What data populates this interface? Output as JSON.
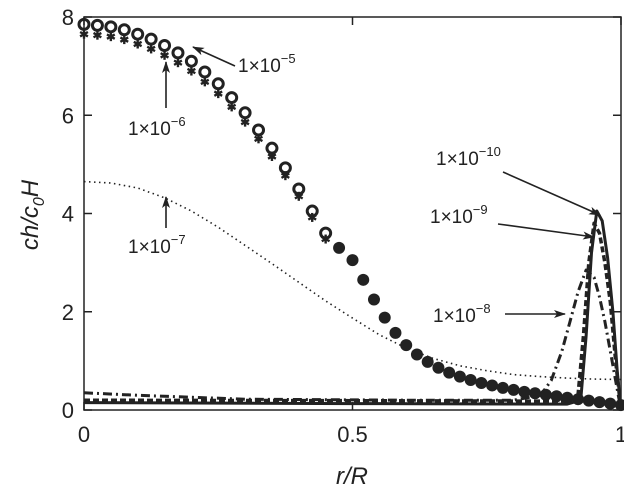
{
  "chart_data": {
    "type": "line",
    "title": "",
    "xlabel": {
      "main": "r/R"
    },
    "ylabel": {
      "pre": "ch/c",
      "sub": "0",
      "post": "H"
    },
    "xlim": [
      0,
      1
    ],
    "ylim": [
      0,
      8
    ],
    "xticks": [
      {
        "v": 0,
        "label": "0"
      },
      {
        "v": 0.5,
        "label": "0.5"
      },
      {
        "v": 1,
        "label": "1"
      }
    ],
    "yticks": [
      {
        "v": 0,
        "label": "0"
      },
      {
        "v": 2,
        "label": "2"
      },
      {
        "v": 4,
        "label": "4"
      },
      {
        "v": 6,
        "label": "6"
      },
      {
        "v": 8,
        "label": "8"
      }
    ],
    "grid": false,
    "series": [
      {
        "name": "1e-5",
        "style": "open-circle-then-filled",
        "x": [
          0,
          0.025,
          0.05,
          0.075,
          0.1,
          0.125,
          0.15,
          0.175,
          0.2,
          0.225,
          0.25,
          0.275,
          0.3,
          0.325,
          0.35,
          0.375,
          0.4,
          0.425,
          0.45,
          0.475,
          0.5,
          0.52,
          0.54,
          0.56,
          0.58,
          0.6,
          0.62,
          0.64,
          0.66,
          0.68,
          0.7,
          0.72,
          0.74,
          0.76,
          0.78,
          0.8,
          0.82,
          0.84,
          0.86,
          0.88,
          0.9,
          0.92,
          0.94,
          0.96,
          0.98,
          1.0
        ],
        "y": [
          7.85,
          7.83,
          7.8,
          7.74,
          7.65,
          7.55,
          7.42,
          7.27,
          7.1,
          6.88,
          6.64,
          6.36,
          6.05,
          5.7,
          5.33,
          4.93,
          4.5,
          4.05,
          3.6,
          3.3,
          3.05,
          2.65,
          2.25,
          1.88,
          1.57,
          1.32,
          1.13,
          0.98,
          0.86,
          0.76,
          0.68,
          0.61,
          0.55,
          0.5,
          0.45,
          0.41,
          0.37,
          0.34,
          0.31,
          0.28,
          0.25,
          0.22,
          0.19,
          0.16,
          0.13,
          0.1
        ]
      },
      {
        "name": "1e-6",
        "style": "asterisk",
        "x": [
          0,
          0.025,
          0.05,
          0.075,
          0.1,
          0.125,
          0.15,
          0.175,
          0.2,
          0.225,
          0.25,
          0.275,
          0.3,
          0.325,
          0.35,
          0.375,
          0.4,
          0.425,
          0.45
        ],
        "y": [
          7.65,
          7.63,
          7.6,
          7.54,
          7.45,
          7.35,
          7.22,
          7.07,
          6.9,
          6.68,
          6.44,
          6.17,
          5.86,
          5.52,
          5.16,
          4.77,
          4.35,
          3.92,
          3.48
        ]
      },
      {
        "name": "1e-7",
        "style": "dotted",
        "x": [
          0,
          0.05,
          0.1,
          0.15,
          0.2,
          0.25,
          0.3,
          0.35,
          0.4,
          0.45,
          0.5,
          0.55,
          0.6,
          0.65,
          0.7,
          0.75,
          0.8,
          0.85,
          0.9,
          0.95,
          1.0
        ],
        "y": [
          4.65,
          4.62,
          4.52,
          4.32,
          4.05,
          3.72,
          3.35,
          2.98,
          2.6,
          2.22,
          1.87,
          1.53,
          1.26,
          1.05,
          0.9,
          0.8,
          0.72,
          0.68,
          0.65,
          0.63,
          0.62
        ]
      },
      {
        "name": "1e-8",
        "style": "dash-dot",
        "x": [
          0,
          0.1,
          0.3,
          0.6,
          0.8,
          0.85,
          0.87,
          0.89,
          0.905,
          0.92,
          0.935,
          0.95,
          0.96,
          0.97,
          0.98,
          0.99,
          1.0
        ],
        "y": [
          0.35,
          0.3,
          0.22,
          0.2,
          0.2,
          0.3,
          0.6,
          1.2,
          1.8,
          2.4,
          2.85,
          2.7,
          2.3,
          1.8,
          1.2,
          0.6,
          0.0
        ]
      },
      {
        "name": "1e-9",
        "style": "dashed",
        "x": [
          0,
          0.5,
          0.9,
          0.92,
          0.93,
          0.94,
          0.95,
          0.96,
          0.97,
          0.98,
          0.99,
          1.0
        ],
        "y": [
          0.2,
          0.19,
          0.18,
          0.3,
          1.5,
          3.0,
          3.8,
          3.6,
          3.0,
          2.2,
          1.0,
          0.0
        ]
      },
      {
        "name": "1e-10",
        "style": "solid",
        "x": [
          0,
          0.5,
          0.9,
          0.925,
          0.935,
          0.945,
          0.955,
          0.965,
          0.975,
          0.985,
          0.993,
          1.0
        ],
        "y": [
          0.15,
          0.13,
          0.12,
          0.2,
          1.5,
          3.2,
          4.05,
          3.85,
          3.1,
          2.0,
          0.8,
          0.0
        ]
      }
    ],
    "annotations": [
      {
        "series": "1e-5",
        "base": "1×10",
        "exp": "−5"
      },
      {
        "series": "1e-6",
        "base": "1×10",
        "exp": "−6"
      },
      {
        "series": "1e-7",
        "base": "1×10",
        "exp": "−7"
      },
      {
        "series": "1e-10",
        "base": "1×10",
        "exp": "−10"
      },
      {
        "series": "1e-9",
        "base": "1×10",
        "exp": "−9"
      },
      {
        "series": "1e-8",
        "base": "1×10",
        "exp": "−8"
      }
    ]
  }
}
